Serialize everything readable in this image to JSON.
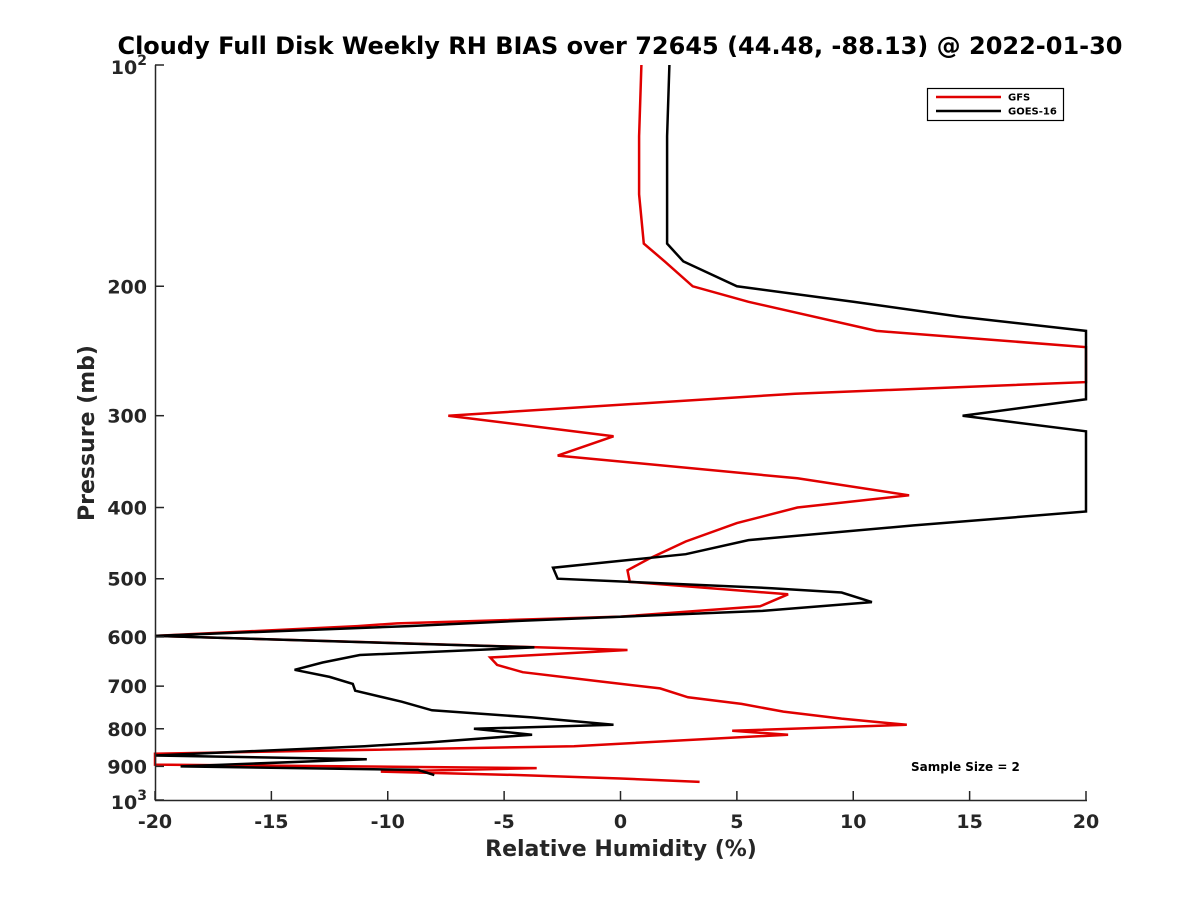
{
  "chart_data": {
    "type": "line",
    "title": "Cloudy Full Disk Weekly RH BIAS over 72645 (44.48, -88.13) @ 2022-01-30",
    "xlabel": "Relative Humidity (%)",
    "ylabel": "Pressure (mb)",
    "xlim": [
      -20,
      20
    ],
    "ylim": [
      100,
      1000
    ],
    "y_scale": "log",
    "y_reversed": true,
    "grid": false,
    "legend_position": "top-right",
    "x_ticks": [
      -20,
      -15,
      -10,
      -5,
      0,
      5,
      10,
      15,
      20
    ],
    "x_tick_labels": [
      "-20",
      "-15",
      "-10",
      "-5",
      "0",
      "5",
      "10",
      "15",
      "20"
    ],
    "y_ticks": [
      200,
      300,
      400,
      500,
      600,
      700,
      800,
      900
    ],
    "y_tick_labels": [
      "200",
      "300",
      "400",
      "500",
      "600",
      "700",
      "800",
      "900"
    ],
    "y_end_ticks": [
      {
        "value": 100,
        "base": "10",
        "exp": "2"
      },
      {
        "value": 1000,
        "base": "10",
        "exp": "3"
      }
    ],
    "annotation": "Sample Size = 2",
    "series": [
      {
        "name": "GFS",
        "color": "#e00000",
        "points": [
          [
            0.9,
            100
          ],
          [
            0.8,
            125
          ],
          [
            0.8,
            150
          ],
          [
            1.0,
            175
          ],
          [
            1.9,
            185
          ],
          [
            3.1,
            200
          ],
          [
            5.5,
            210
          ],
          [
            11.0,
            230
          ],
          [
            20.0,
            242
          ],
          [
            20.0,
            270
          ],
          [
            7.5,
            280
          ],
          [
            -7.4,
            300
          ],
          [
            -0.3,
            320
          ],
          [
            -2.7,
            340
          ],
          [
            7.6,
            365
          ],
          [
            12.4,
            385
          ],
          [
            7.6,
            400
          ],
          [
            5.0,
            420
          ],
          [
            2.8,
            445
          ],
          [
            1.2,
            470
          ],
          [
            0.3,
            487
          ],
          [
            0.4,
            505
          ],
          [
            7.2,
            525
          ],
          [
            6.0,
            545
          ],
          [
            0.0,
            563
          ],
          [
            -9.6,
            575
          ],
          [
            -11.3,
            580
          ],
          [
            -20.0,
            598
          ],
          [
            0.3,
            625
          ],
          [
            -5.6,
            640
          ],
          [
            -5.3,
            655
          ],
          [
            -4.2,
            670
          ],
          [
            -0.8,
            690
          ],
          [
            1.7,
            705
          ],
          [
            2.9,
            725
          ],
          [
            5.2,
            740
          ],
          [
            7.0,
            758
          ],
          [
            9.5,
            775
          ],
          [
            12.3,
            790
          ],
          [
            4.8,
            805
          ],
          [
            7.2,
            815
          ],
          [
            -2.0,
            845
          ],
          [
            -20.0,
            865
          ],
          [
            -20.0,
            895
          ],
          [
            -3.6,
            905
          ],
          [
            -10.3,
            915
          ],
          [
            -4.3,
            925
          ],
          [
            0.0,
            935
          ],
          [
            3.4,
            945
          ]
        ]
      },
      {
        "name": "GOES-16",
        "color": "#000000",
        "points": [
          [
            2.1,
            100
          ],
          [
            2.0,
            125
          ],
          [
            2.0,
            150
          ],
          [
            2.0,
            175
          ],
          [
            2.7,
            185
          ],
          [
            5.0,
            200
          ],
          [
            10.0,
            210
          ],
          [
            14.6,
            220
          ],
          [
            20.0,
            230
          ],
          [
            20.0,
            285
          ],
          [
            14.7,
            300
          ],
          [
            20.0,
            315
          ],
          [
            20.0,
            405
          ],
          [
            12.6,
            423
          ],
          [
            5.5,
            443
          ],
          [
            2.8,
            463
          ],
          [
            -2.9,
            483
          ],
          [
            -2.7,
            500
          ],
          [
            6.5,
            515
          ],
          [
            9.5,
            522
          ],
          [
            10.8,
            538
          ],
          [
            6.1,
            553
          ],
          [
            -4.1,
            570
          ],
          [
            -9.1,
            580
          ],
          [
            -20.0,
            598
          ],
          [
            -3.7,
            620
          ],
          [
            -11.2,
            635
          ],
          [
            -12.8,
            650
          ],
          [
            -14.0,
            665
          ],
          [
            -12.5,
            680
          ],
          [
            -11.5,
            695
          ],
          [
            -11.4,
            710
          ],
          [
            -9.4,
            735
          ],
          [
            -8.1,
            755
          ],
          [
            -3.8,
            772
          ],
          [
            -0.3,
            790
          ],
          [
            -6.3,
            800
          ],
          [
            -3.8,
            815
          ],
          [
            -8.2,
            835
          ],
          [
            -11.0,
            845
          ],
          [
            -20.0,
            870
          ],
          [
            -10.9,
            880
          ],
          [
            -18.9,
            900
          ],
          [
            -8.7,
            910
          ],
          [
            -8.0,
            925
          ]
        ]
      }
    ]
  }
}
